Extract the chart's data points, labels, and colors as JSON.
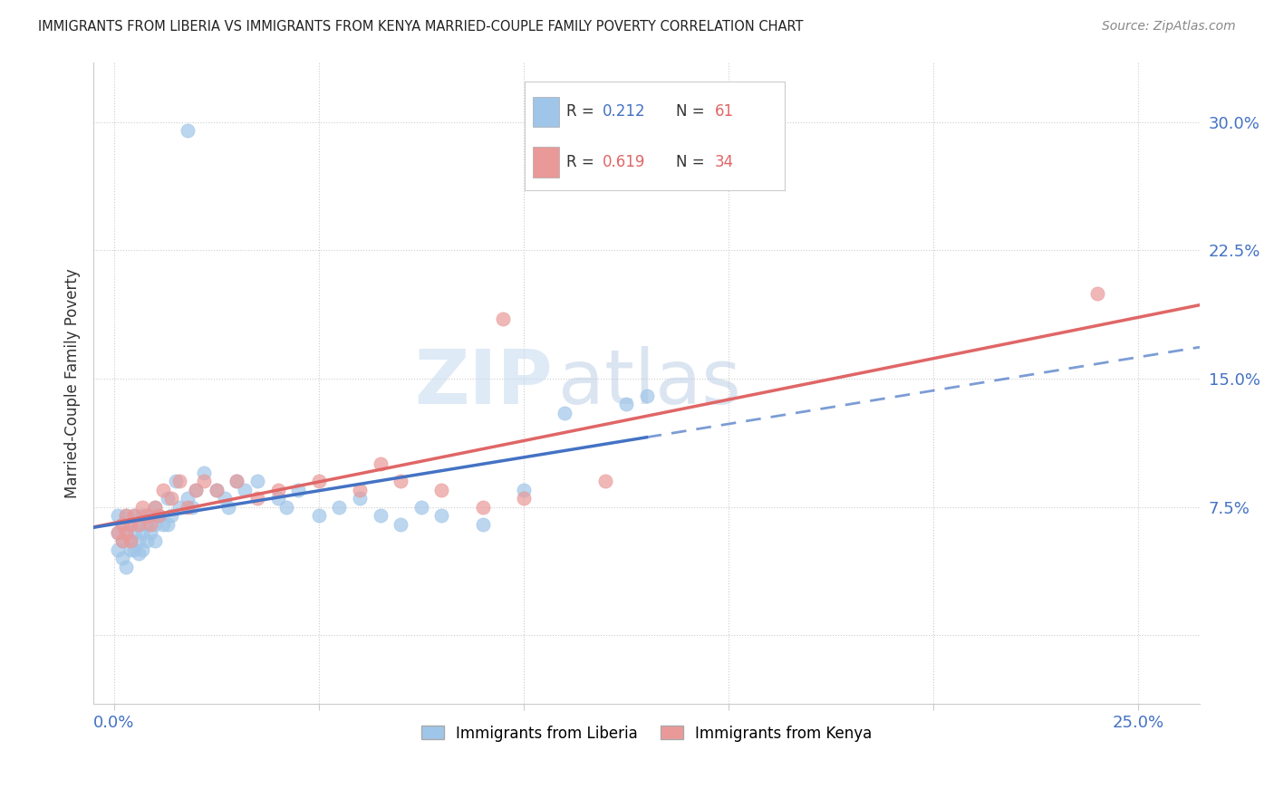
{
  "title": "IMMIGRANTS FROM LIBERIA VS IMMIGRANTS FROM KENYA MARRIED-COUPLE FAMILY POVERTY CORRELATION CHART",
  "source": "Source: ZipAtlas.com",
  "ylabel": "Married-Couple Family Poverty",
  "x_ticks": [
    0.0,
    0.05,
    0.1,
    0.15,
    0.2,
    0.25
  ],
  "x_tick_labels": [
    "0.0%",
    "",
    "",
    "",
    "",
    "25.0%"
  ],
  "y_ticks": [
    0.0,
    0.075,
    0.15,
    0.225,
    0.3
  ],
  "y_tick_labels": [
    "",
    "7.5%",
    "15.0%",
    "22.5%",
    "30.0%"
  ],
  "xlim": [
    -0.005,
    0.265
  ],
  "ylim": [
    -0.04,
    0.335
  ],
  "liberia_R": 0.212,
  "liberia_N": 61,
  "kenya_R": 0.619,
  "kenya_N": 34,
  "liberia_color": "#9fc5e8",
  "kenya_color": "#ea9999",
  "liberia_line_color": "#4472c4",
  "kenya_line_color": "#e06666",
  "watermark_zip": "ZIP",
  "watermark_atlas": "atlas",
  "background_color": "#ffffff",
  "liberia_x": [
    0.001,
    0.001,
    0.001,
    0.002,
    0.002,
    0.002,
    0.003,
    0.003,
    0.003,
    0.004,
    0.004,
    0.004,
    0.005,
    0.005,
    0.005,
    0.006,
    0.006,
    0.006,
    0.007,
    0.007,
    0.007,
    0.008,
    0.008,
    0.009,
    0.009,
    0.01,
    0.01,
    0.01,
    0.011,
    0.012,
    0.013,
    0.013,
    0.014,
    0.015,
    0.016,
    0.018,
    0.019,
    0.02,
    0.022,
    0.025,
    0.027,
    0.028,
    0.03,
    0.032,
    0.035,
    0.04,
    0.042,
    0.045,
    0.05,
    0.055,
    0.06,
    0.065,
    0.07,
    0.075,
    0.08,
    0.09,
    0.1,
    0.11,
    0.125,
    0.13,
    0.018
  ],
  "liberia_y": [
    0.06,
    0.07,
    0.05,
    0.065,
    0.055,
    0.045,
    0.06,
    0.07,
    0.04,
    0.065,
    0.055,
    0.05,
    0.07,
    0.06,
    0.05,
    0.065,
    0.055,
    0.048,
    0.07,
    0.06,
    0.05,
    0.065,
    0.055,
    0.07,
    0.06,
    0.075,
    0.065,
    0.055,
    0.07,
    0.065,
    0.08,
    0.065,
    0.07,
    0.09,
    0.075,
    0.08,
    0.075,
    0.085,
    0.095,
    0.085,
    0.08,
    0.075,
    0.09,
    0.085,
    0.09,
    0.08,
    0.075,
    0.085,
    0.07,
    0.075,
    0.08,
    0.07,
    0.065,
    0.075,
    0.07,
    0.065,
    0.085,
    0.13,
    0.135,
    0.14,
    0.295
  ],
  "kenya_x": [
    0.001,
    0.002,
    0.002,
    0.003,
    0.003,
    0.004,
    0.004,
    0.005,
    0.006,
    0.007,
    0.008,
    0.009,
    0.01,
    0.011,
    0.012,
    0.014,
    0.016,
    0.018,
    0.02,
    0.022,
    0.025,
    0.03,
    0.035,
    0.04,
    0.05,
    0.06,
    0.065,
    0.07,
    0.08,
    0.09,
    0.1,
    0.12,
    0.095,
    0.24
  ],
  "kenya_y": [
    0.06,
    0.055,
    0.065,
    0.06,
    0.07,
    0.065,
    0.055,
    0.07,
    0.065,
    0.075,
    0.07,
    0.065,
    0.075,
    0.07,
    0.085,
    0.08,
    0.09,
    0.075,
    0.085,
    0.09,
    0.085,
    0.09,
    0.08,
    0.085,
    0.09,
    0.085,
    0.1,
    0.09,
    0.085,
    0.075,
    0.08,
    0.09,
    0.185,
    0.2
  ]
}
